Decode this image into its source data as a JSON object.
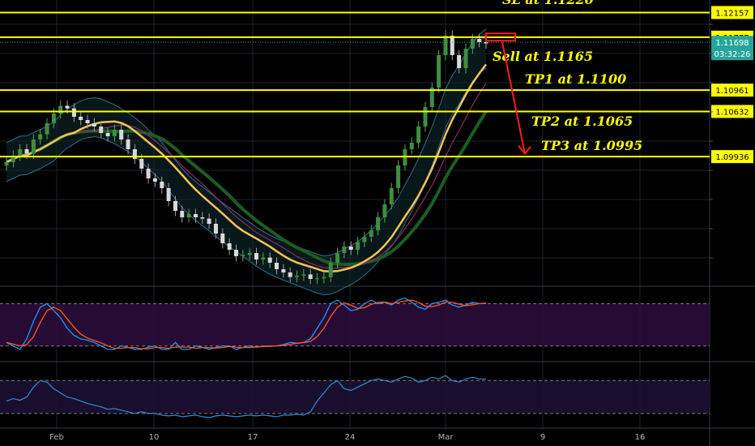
{
  "chart_data": {
    "type": "candlestick",
    "x_ticks": [
      "Feb",
      "10",
      "17",
      "24",
      "Mar",
      "9",
      "16"
    ],
    "ylim": [
      1.0795,
      1.1235
    ],
    "price_levels": [
      {
        "label": "1.12157",
        "value": 1.12157,
        "line_color": "#ffff00",
        "box_color": "#ffff00",
        "text_color": "#000000"
      },
      {
        "label": "1.11777",
        "value": 1.11777,
        "line_color": "#ffff00",
        "box_color": "#ffff00",
        "text_color": "#000000"
      },
      {
        "label": "1.10961",
        "value": 1.10961,
        "line_color": "#ffff00",
        "box_color": "#ffff00",
        "text_color": "#000000"
      },
      {
        "label": "1.10632",
        "value": 1.10632,
        "line_color": "#ffff00",
        "box_color": "#ffff00",
        "text_color": "#000000"
      },
      {
        "label": "1.09936",
        "value": 1.09936,
        "line_color": "#ffff00",
        "box_color": "#ffff00",
        "text_color": "#000000"
      }
    ],
    "current_price": {
      "label": "1.11698",
      "value": 1.11698,
      "countdown": "03:32:26",
      "color": "#26a69a"
    },
    "annotations": [
      {
        "text": "SL at 1.1220",
        "price": 1.122
      },
      {
        "text": "Sell at 1.1165",
        "price": 1.1165
      },
      {
        "text": "TP1 at 1.1100",
        "price": 1.11
      },
      {
        "text": "TP2 at 1.1065",
        "price": 1.1065
      },
      {
        "text": "TP3 at 1.0995",
        "price": 1.0995
      }
    ],
    "close_series": [
      1.0985,
      1.0995,
      1.1005,
      1.0998,
      1.102,
      1.1028,
      1.1045,
      1.106,
      1.1072,
      1.1068,
      1.1055,
      1.105,
      1.1045,
      1.104,
      1.103,
      1.1025,
      1.1035,
      1.102,
      1.1005,
      1.099,
      1.0975,
      1.096,
      1.0955,
      1.0945,
      1.0925,
      1.091,
      1.09,
      1.0905,
      1.09,
      1.0898,
      1.089,
      1.0875,
      1.086,
      1.085,
      1.084,
      1.0842,
      1.0845,
      1.0835,
      1.0838,
      1.083,
      1.082,
      1.0815,
      1.0808,
      1.081,
      1.0812,
      1.0805,
      1.0806,
      1.0808,
      1.083,
      1.0845,
      1.0855,
      1.085,
      1.0862,
      1.087,
      1.088,
      1.09,
      1.092,
      1.0945,
      1.098,
      1.1005,
      1.1015,
      1.104,
      1.107,
      1.11,
      1.115,
      1.118,
      1.115,
      1.113,
      1.116,
      1.1175,
      1.117,
      1.1168
    ],
    "stoch_k": [
      25,
      20,
      15,
      30,
      55,
      75,
      80,
      70,
      60,
      45,
      35,
      30,
      28,
      25,
      20,
      15,
      15,
      20,
      18,
      15,
      15,
      18,
      20,
      15,
      15,
      25,
      15,
      15,
      20,
      18,
      15,
      18,
      20,
      20,
      15,
      18,
      20,
      18,
      20,
      20,
      20,
      22,
      25,
      24,
      25,
      30,
      45,
      60,
      80,
      85,
      78,
      70,
      72,
      80,
      85,
      80,
      82,
      78,
      85,
      88,
      82,
      75,
      72,
      80,
      82,
      85,
      78,
      75,
      78,
      82,
      80,
      80
    ],
    "rsi_series": [
      45,
      48,
      46,
      50,
      62,
      70,
      68,
      60,
      55,
      50,
      48,
      45,
      42,
      40,
      38,
      35,
      36,
      34,
      32,
      30,
      32,
      30,
      30,
      28,
      27,
      28,
      26,
      27,
      28,
      26,
      25,
      27,
      28,
      27,
      26,
      27,
      28,
      27,
      28,
      27,
      26,
      28,
      28,
      29,
      28,
      32,
      45,
      55,
      65,
      70,
      60,
      58,
      62,
      66,
      70,
      72,
      70,
      68,
      72,
      75,
      73,
      68,
      70,
      74,
      72,
      76,
      70,
      68,
      72,
      74,
      72,
      72
    ]
  }
}
